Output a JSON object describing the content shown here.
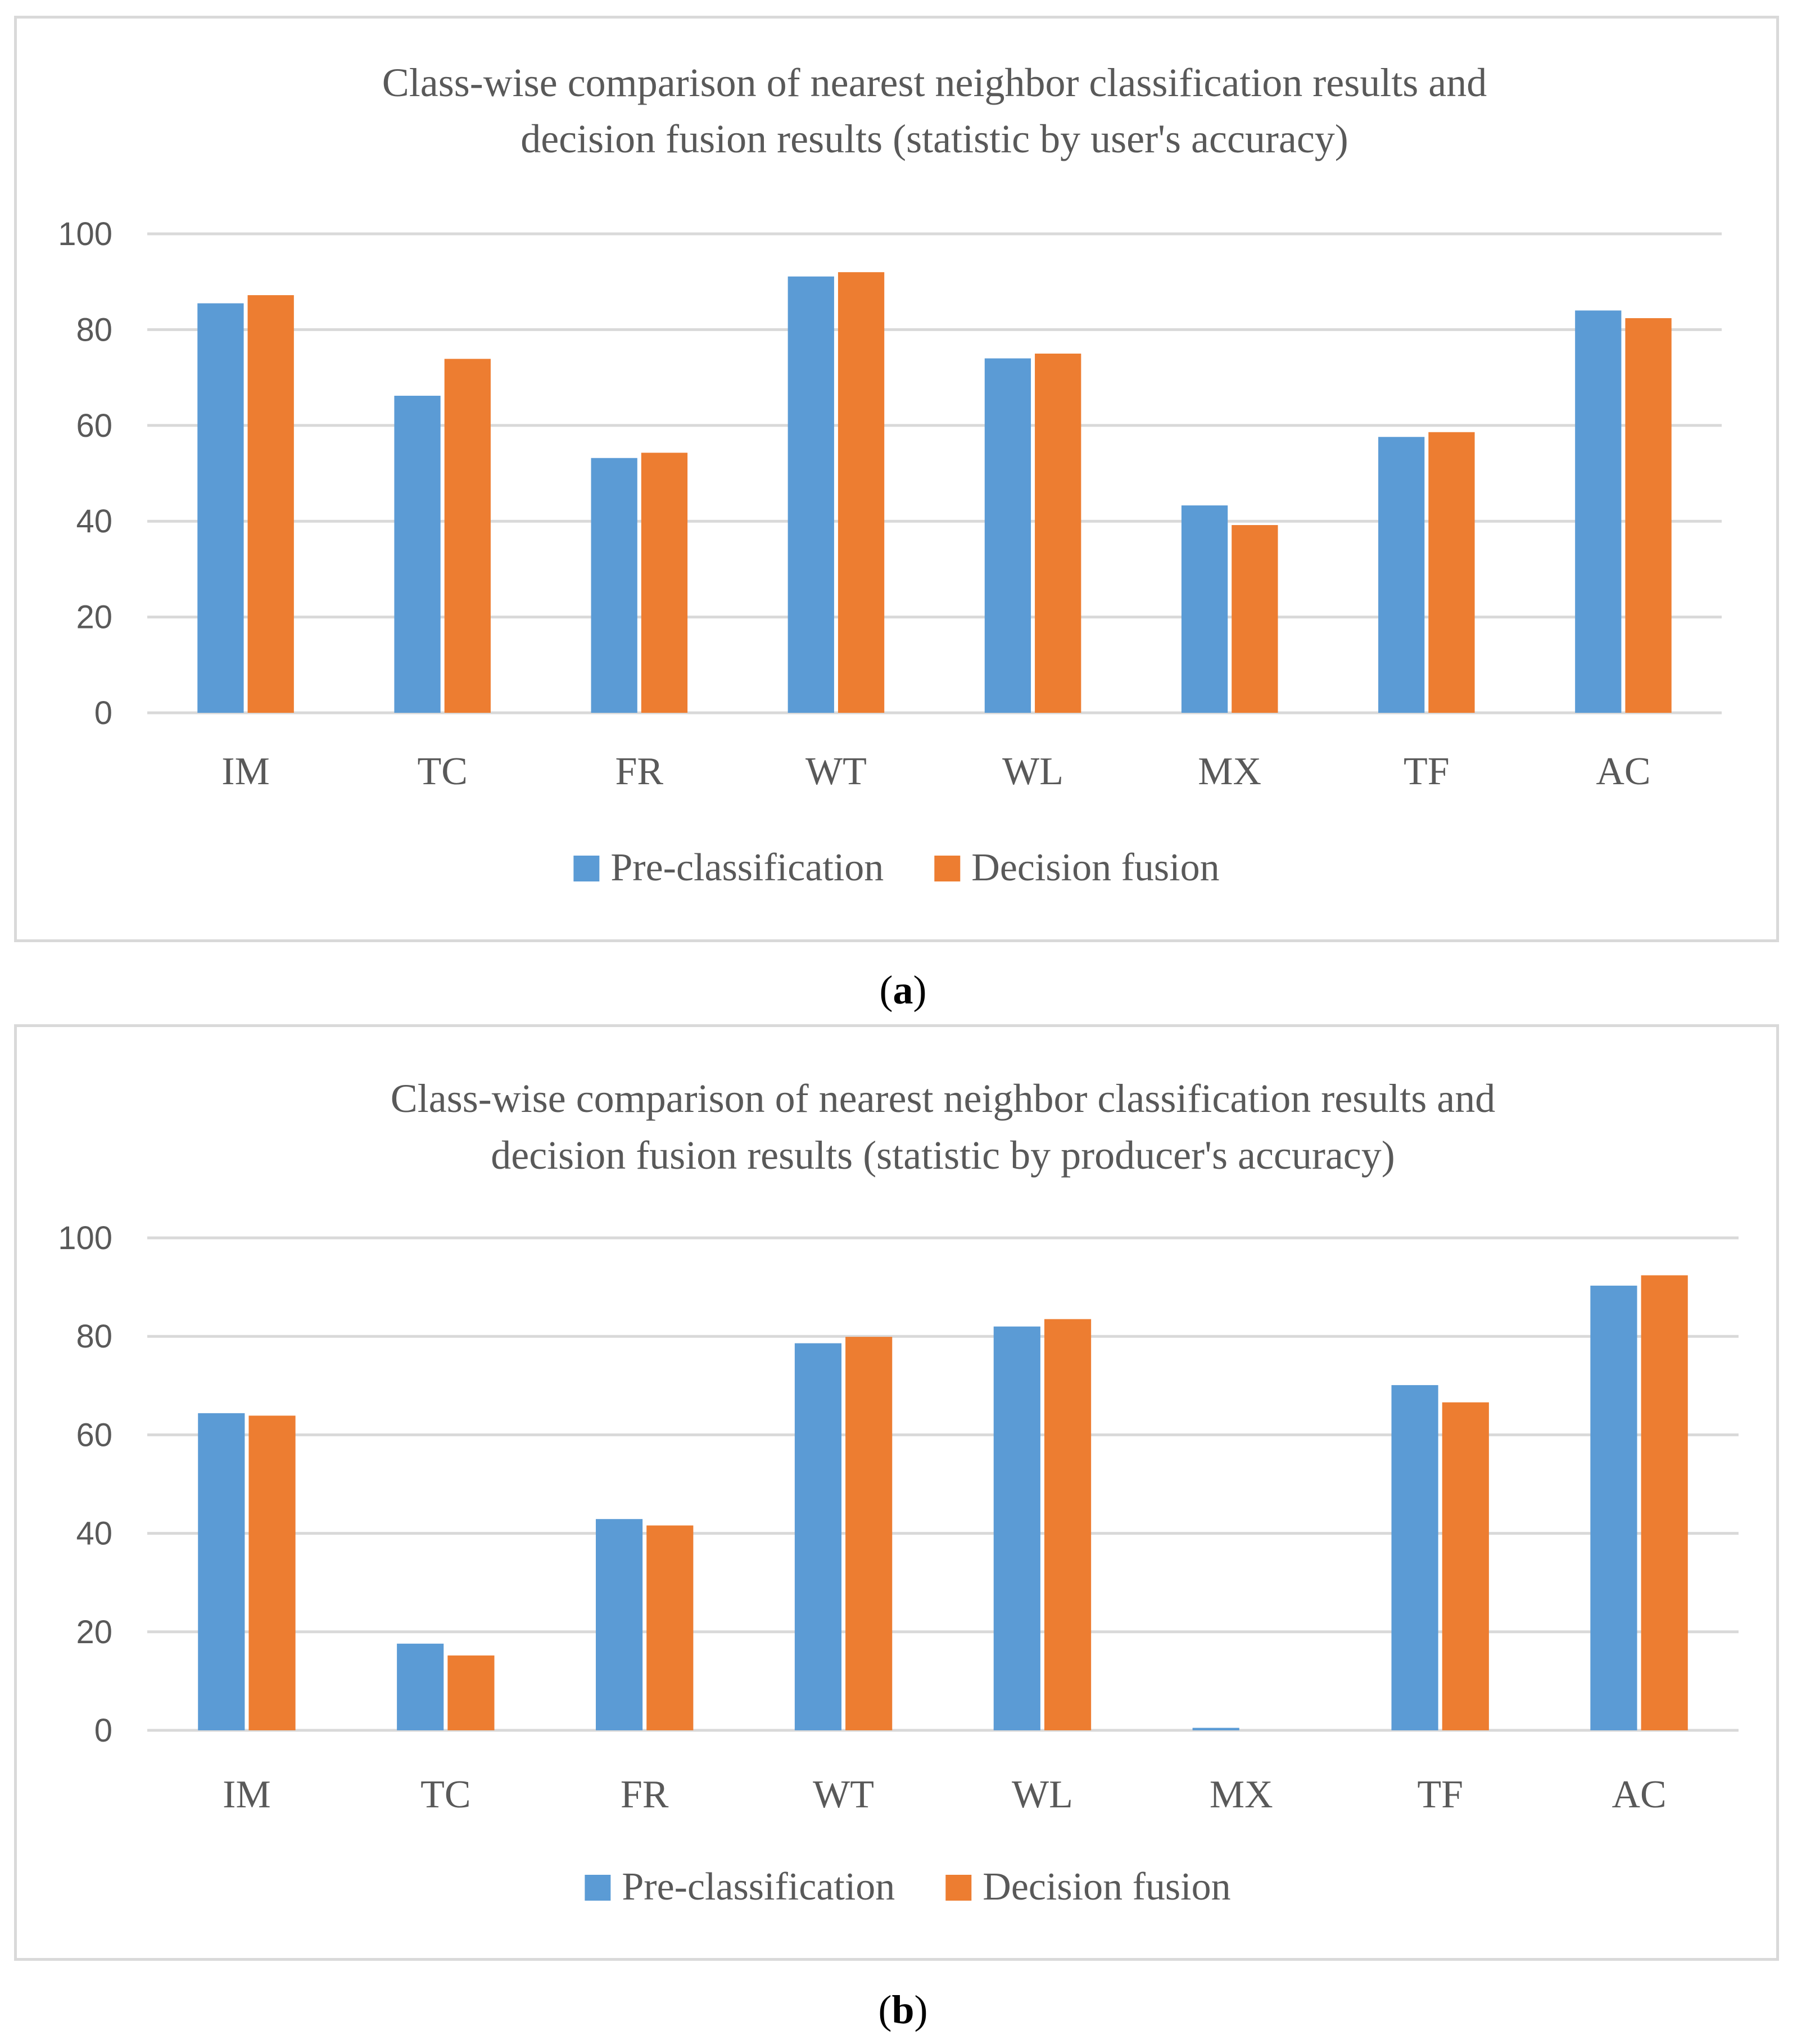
{
  "colors": {
    "series1": "#5b9bd5",
    "series2": "#ed7d31",
    "grid": "#d9d9d9",
    "text": "#595959"
  },
  "chart_data": [
    {
      "type": "bar",
      "title_lines": [
        "Class-wise comparison of nearest neighbor classification results and",
        "decision fusion results (statistic by user's accuracy)"
      ],
      "categories": [
        "IM",
        "TC",
        "FR",
        "WT",
        "WL",
        "MX",
        "TF",
        "AC"
      ],
      "series": [
        {
          "name": "Pre-classification",
          "values": [
            85.5,
            66.2,
            53.2,
            91.1,
            74.0,
            43.3,
            57.6,
            84.0
          ]
        },
        {
          "name": "Decision fusion",
          "values": [
            87.2,
            73.9,
            54.3,
            92.0,
            75.0,
            39.2,
            58.6,
            82.4
          ]
        }
      ],
      "y_ticks": [
        "0",
        "20",
        "40",
        "60",
        "80",
        "100"
      ],
      "ylim": [
        0,
        100
      ],
      "grid": true,
      "legend": "bottom",
      "xlabel": "",
      "ylabel": ""
    },
    {
      "type": "bar",
      "title_lines": [
        "Class-wise comparison of nearest neighbor classification results and",
        "decision fusion results (statistic by producer's accuracy)"
      ],
      "categories": [
        "IM",
        "TC",
        "FR",
        "WT",
        "WL",
        "MX",
        "TF",
        "AC"
      ],
      "series": [
        {
          "name": "Pre-classification",
          "values": [
            64.4,
            17.6,
            42.9,
            78.6,
            82.0,
            0.5,
            70.1,
            90.3
          ]
        },
        {
          "name": "Decision fusion",
          "values": [
            63.9,
            15.2,
            41.6,
            79.9,
            83.5,
            0,
            66.6,
            92.4
          ]
        }
      ],
      "y_ticks": [
        "0",
        "20",
        "40",
        "60",
        "80",
        "100"
      ],
      "ylim": [
        0,
        100
      ],
      "grid": true,
      "legend": "bottom",
      "xlabel": "",
      "ylabel": ""
    }
  ],
  "captions": {
    "a": {
      "open": "(",
      "label": "a",
      "close": ")"
    },
    "b": {
      "open": "(",
      "label": "b",
      "close": ")"
    }
  }
}
